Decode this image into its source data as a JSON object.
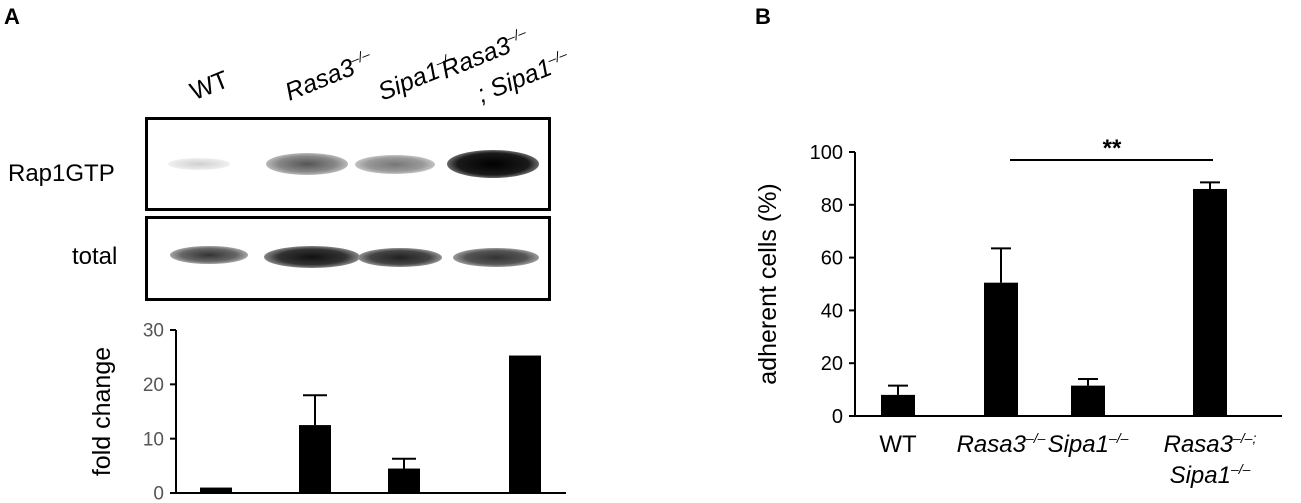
{
  "panel_a": {
    "letter": "A",
    "lane_labels": [
      {
        "main": "WT",
        "sup": "",
        "line2": "",
        "sup2": ""
      },
      {
        "main": "Rasa3",
        "sup": "–/–",
        "line2": "",
        "sup2": ""
      },
      {
        "main": "Sipa1",
        "sup": "–/–",
        "line2": "",
        "sup2": ""
      },
      {
        "main": "Rasa3",
        "sup": "–/–",
        "line2": "; Sipa1",
        "sup2": "–/–"
      }
    ],
    "blot_rows": [
      "Rap1GTP",
      "total"
    ]
  },
  "panel_b": {
    "letter": "B"
  },
  "chart_data": [
    {
      "type": "bar",
      "panel": "A",
      "categories": [
        "WT",
        "Rasa3–/–",
        "Sipa1–/–",
        "Rasa3–/–; Sipa1–/–"
      ],
      "values": [
        1,
        12.5,
        4.5,
        25.3
      ],
      "errors": [
        0,
        5.5,
        1.8,
        0
      ],
      "ylabel": "fold change",
      "ylim": [
        0,
        30
      ],
      "yticks": [
        "0",
        "10",
        "20",
        "30"
      ]
    },
    {
      "type": "bar",
      "panel": "B",
      "categories": [
        "WT",
        "Rasa3–/–",
        "Sipa1–/–",
        "Rasa3–/–; Sipa1–/–"
      ],
      "values": [
        8,
        50.5,
        11.5,
        86
      ],
      "errors": [
        3.5,
        13,
        2.5,
        2.5
      ],
      "ylabel": "adherent cells (%)",
      "ylim": [
        0,
        100
      ],
      "yticks": [
        "0",
        "20",
        "40",
        "60",
        "80",
        "100"
      ],
      "annotation": "**",
      "xlabels": [
        {
          "main": "WT",
          "sup": "",
          "line2": "",
          "sup2": ""
        },
        {
          "main": "Rasa3",
          "sup": "–/–",
          "line2": "",
          "sup2": ""
        },
        {
          "main": "Sipa1",
          "sup": "–/–",
          "line2": "",
          "sup2": ""
        },
        {
          "main": "Rasa3",
          "sup": "–/–;",
          "line2": "Sipa1",
          "sup2": "–/–"
        }
      ]
    }
  ]
}
